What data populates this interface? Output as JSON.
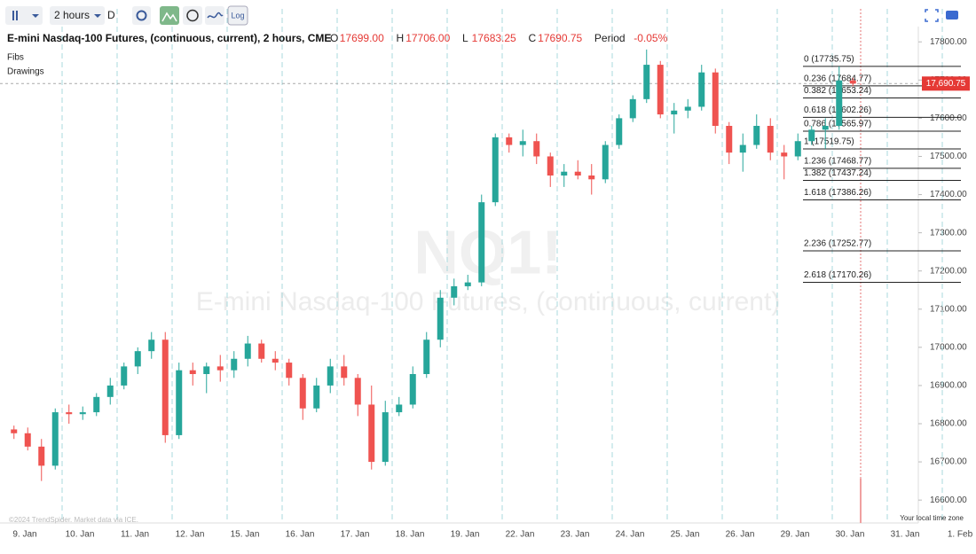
{
  "header": {
    "interval": "2 hours",
    "chart_style": "D",
    "log_button": "Log",
    "title": "E-mini Nasdaq-100 Futures, (continuous, current), 2 hours, CME",
    "ohlc": [
      {
        "key": "O",
        "value": "17699.00"
      },
      {
        "key": "H",
        "value": "17706.00"
      },
      {
        "key": "L",
        "value": "17683.25"
      },
      {
        "key": "C",
        "value": "17690.75"
      }
    ],
    "period_label": "Period",
    "period_value": "-0.05%"
  },
  "panels": [
    "Fibs",
    "Drawings"
  ],
  "watermark": {
    "symbol": "NQ1!",
    "name": "E-mini Nasdaq-100 Futures, (continuous, current)"
  },
  "footer": {
    "credit": "©2024 TrendSpider. Market data via ICE.",
    "timezone": "Your local time zone"
  },
  "chart_data": {
    "type": "candlestick",
    "up_color": "#26a69a",
    "down_color": "#ef5350",
    "categories": [
      "9. Jan",
      "10. Jan",
      "11. Jan",
      "12. Jan",
      "15. Jan",
      "16. Jan",
      "17. Jan",
      "18. Jan",
      "19. Jan",
      "22. Jan",
      "23. Jan",
      "24. Jan",
      "25. Jan",
      "26. Jan",
      "29. Jan",
      "30. Jan",
      "31. Jan",
      "1. Feb"
    ],
    "open": [
      [
        16785,
        16775,
        16740,
        16690
      ],
      [
        16830,
        16825,
        16830,
        16870
      ],
      [
        16900,
        16950,
        16990,
        17020
      ],
      [
        16770,
        16940,
        16930,
        16950
      ],
      [
        16940,
        16970,
        17010,
        16970
      ],
      [
        16960,
        16920,
        16840,
        16900
      ],
      [
        16950,
        16920,
        16850,
        16700
      ],
      [
        16830,
        16850,
        16930,
        17020
      ],
      [
        17130,
        17160,
        17170,
        17380
      ],
      [
        17550,
        17530,
        17540,
        17500
      ],
      [
        17450,
        17460,
        17450,
        17440
      ],
      [
        17530,
        17600,
        17650,
        17740
      ],
      [
        17610,
        17620,
        17630,
        17720
      ],
      [
        17580,
        17510,
        17530,
        17580
      ],
      [
        17510,
        17500,
        17540,
        17570
      ],
      [
        17580,
        17699
      ],
      [],
      []
    ],
    "high": [
      [
        16795,
        16790,
        16760,
        16840
      ],
      [
        16850,
        16845,
        16880,
        16920
      ],
      [
        16960,
        17000,
        17040,
        17040
      ],
      [
        16960,
        16960,
        16960,
        16980
      ],
      [
        16990,
        17030,
        17020,
        16990
      ],
      [
        16970,
        16930,
        16920,
        16970
      ],
      [
        16980,
        16930,
        16900,
        16860
      ],
      [
        16870,
        16950,
        17040,
        17150
      ],
      [
        17180,
        17190,
        17400,
        17560
      ],
      [
        17560,
        17570,
        17560,
        17510
      ],
      [
        17480,
        17490,
        17480,
        17540
      ],
      [
        17610,
        17660,
        17780,
        17750
      ],
      [
        17640,
        17650,
        17740,
        17730
      ],
      [
        17590,
        17560,
        17610,
        17600
      ],
      [
        17530,
        17560,
        17580,
        17600
      ],
      [
        17735.75,
        17706
      ],
      [],
      []
    ],
    "low": [
      [
        16760,
        16730,
        16650,
        16680
      ],
      [
        16800,
        16810,
        16820,
        16850
      ],
      [
        16890,
        16930,
        16970,
        16750
      ],
      [
        16760,
        16900,
        16880,
        16910
      ],
      [
        16920,
        16950,
        16960,
        16940
      ],
      [
        16900,
        16810,
        16830,
        16880
      ],
      [
        16900,
        16820,
        16680,
        16690
      ],
      [
        16820,
        16840,
        16920,
        17000
      ],
      [
        17110,
        17150,
        17160,
        17370
      ],
      [
        17510,
        17500,
        17480,
        17420
      ],
      [
        17420,
        17440,
        17400,
        17430
      ],
      [
        17520,
        17590,
        17640,
        17600
      ],
      [
        17560,
        17600,
        17620,
        17560
      ],
      [
        17480,
        17460,
        17520,
        17490
      ],
      [
        17440,
        17490,
        17530,
        17520
      ],
      [
        17570,
        17683.25
      ],
      [],
      []
    ],
    "close": [
      [
        16775,
        16740,
        16690,
        16830
      ],
      [
        16825,
        16830,
        16870,
        16900
      ],
      [
        16950,
        16990,
        17020,
        16770
      ],
      [
        16940,
        16930,
        16950,
        16940
      ],
      [
        16970,
        17010,
        16970,
        16960
      ],
      [
        16920,
        16840,
        16900,
        16950
      ],
      [
        16920,
        16850,
        16700,
        16830
      ],
      [
        16850,
        16930,
        17020,
        17130
      ],
      [
        17160,
        17170,
        17380,
        17550
      ],
      [
        17530,
        17540,
        17500,
        17450
      ],
      [
        17460,
        17450,
        17440,
        17530
      ],
      [
        17600,
        17650,
        17740,
        17610
      ],
      [
        17620,
        17630,
        17720,
        17580
      ],
      [
        17510,
        17530,
        17580,
        17510
      ],
      [
        17500,
        17540,
        17570,
        17580
      ],
      [
        17699,
        17690.75
      ],
      [],
      []
    ],
    "ylim": [
      16540,
      17840
    ],
    "yticks": [
      {
        "value": 16600,
        "label": "16600.00"
      },
      {
        "value": 16700,
        "label": "16700.00"
      },
      {
        "value": 16800,
        "label": "16800.00"
      },
      {
        "value": 16900,
        "label": "16900.00"
      },
      {
        "value": 17000,
        "label": "17000.00"
      },
      {
        "value": 17100,
        "label": "17100.00"
      },
      {
        "value": 17200,
        "label": "17200.00"
      },
      {
        "value": 17300,
        "label": "17300.00"
      },
      {
        "value": 17400,
        "label": "17400.00"
      },
      {
        "value": 17500,
        "label": "17500.00"
      },
      {
        "value": 17600,
        "label": "17600.00"
      },
      {
        "value": 17700,
        "label": "17700.00"
      },
      {
        "value": 17800,
        "label": "17800.00"
      }
    ],
    "last_price": {
      "value": 17690.75,
      "label": "17,690.75"
    },
    "fib_levels": [
      {
        "value": 17735.75,
        "label": "0 (17735.75)"
      },
      {
        "value": 17684.77,
        "label": "0.236 (17684.77)"
      },
      {
        "value": 17653.24,
        "label": "0.382 (17653.24)"
      },
      {
        "value": 17602.26,
        "label": "0.618 (17602.26)"
      },
      {
        "value": 17565.97,
        "label": "0.786 (17565.97)"
      },
      {
        "value": 17519.75,
        "label": "1 (17519.75)"
      },
      {
        "value": 17468.77,
        "label": "1.236 (17468.77)"
      },
      {
        "value": 17437.24,
        "label": "1.382 (17437.24)"
      },
      {
        "value": 17386.26,
        "label": "1.618 (17386.26)"
      },
      {
        "value": 17252.77,
        "label": "2.236 (17252.77)"
      },
      {
        "value": 17170.26,
        "label": "2.618 (17170.26)"
      }
    ]
  }
}
